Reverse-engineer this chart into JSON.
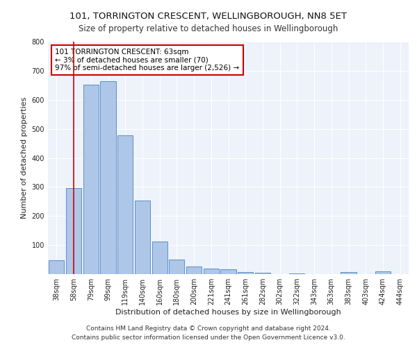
{
  "title1": "101, TORRINGTON CRESCENT, WELLINGBOROUGH, NN8 5ET",
  "title2": "Size of property relative to detached houses in Wellingborough",
  "xlabel": "Distribution of detached houses by size in Wellingborough",
  "ylabel": "Number of detached properties",
  "categories": [
    "38sqm",
    "58sqm",
    "79sqm",
    "99sqm",
    "119sqm",
    "140sqm",
    "160sqm",
    "180sqm",
    "200sqm",
    "221sqm",
    "241sqm",
    "261sqm",
    "282sqm",
    "302sqm",
    "322sqm",
    "343sqm",
    "363sqm",
    "383sqm",
    "403sqm",
    "424sqm",
    "444sqm"
  ],
  "values": [
    47,
    295,
    651,
    663,
    478,
    252,
    113,
    50,
    27,
    18,
    17,
    7,
    5,
    1,
    2,
    0,
    0,
    8,
    0,
    10,
    0
  ],
  "bar_color": "#aec6e8",
  "bar_edge_color": "#5b8fc9",
  "vline_x": 1,
  "vline_color": "#cc0000",
  "annotation_text": "101 TORRINGTON CRESCENT: 63sqm\n← 3% of detached houses are smaller (70)\n97% of semi-detached houses are larger (2,526) →",
  "annotation_box_color": "#ffffff",
  "annotation_box_edge": "#cc0000",
  "ylim": [
    0,
    800
  ],
  "yticks": [
    0,
    100,
    200,
    300,
    400,
    500,
    600,
    700,
    800
  ],
  "footnote1": "Contains HM Land Registry data © Crown copyright and database right 2024.",
  "footnote2": "Contains public sector information licensed under the Open Government Licence v3.0.",
  "bg_color": "#edf2fb",
  "grid_color": "#ffffff",
  "title1_fontsize": 9.5,
  "title2_fontsize": 8.5,
  "xlabel_fontsize": 8,
  "ylabel_fontsize": 8,
  "tick_fontsize": 7,
  "annotation_fontsize": 7.5,
  "footnote_fontsize": 6.5
}
